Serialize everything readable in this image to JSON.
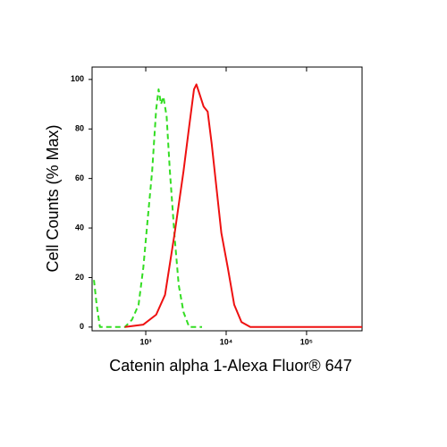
{
  "chart_data": {
    "type": "line",
    "xscale": "log",
    "x_label": "Catenin alpha 1-Alexa Fluor® 647",
    "y_label": "Cell Counts (% Max)",
    "xlim": [
      215,
      490000
    ],
    "ylim": [
      -1.5,
      105
    ],
    "xticks": [
      {
        "value": 1000,
        "label": "10³"
      },
      {
        "value": 10000,
        "label": "10⁴"
      },
      {
        "value": 100000,
        "label": "10⁵"
      }
    ],
    "yticks": [
      0,
      20,
      40,
      60,
      80,
      100
    ],
    "series": [
      {
        "color": "#33dd22",
        "dash": true,
        "x": [
          227,
          245,
          269,
          550,
          676,
          813,
          933,
          1047,
          1202,
          1349,
          1445,
          1549,
          1660,
          1820,
          1995,
          2291,
          2570,
          2951,
          3467,
          5012
        ],
        "values": [
          19,
          9,
          0,
          0,
          3,
          9,
          24,
          42,
          63,
          88,
          96,
          90,
          93,
          85,
          63,
          36,
          17,
          6,
          0,
          0
        ]
      },
      {
        "color": "#ee1111",
        "dash": false,
        "x": [
          550,
          933,
          1349,
          1738,
          2291,
          2951,
          3467,
          3981,
          4266,
          4571,
          5248,
          5888,
          6607,
          7586,
          8710,
          10471,
          12589,
          15488,
          19953,
          490000
        ],
        "values": [
          0,
          1,
          5,
          13,
          38,
          63,
          81,
          96,
          98,
          95,
          89,
          87,
          74,
          56,
          38,
          24,
          9,
          2,
          0,
          0
        ]
      }
    ]
  }
}
